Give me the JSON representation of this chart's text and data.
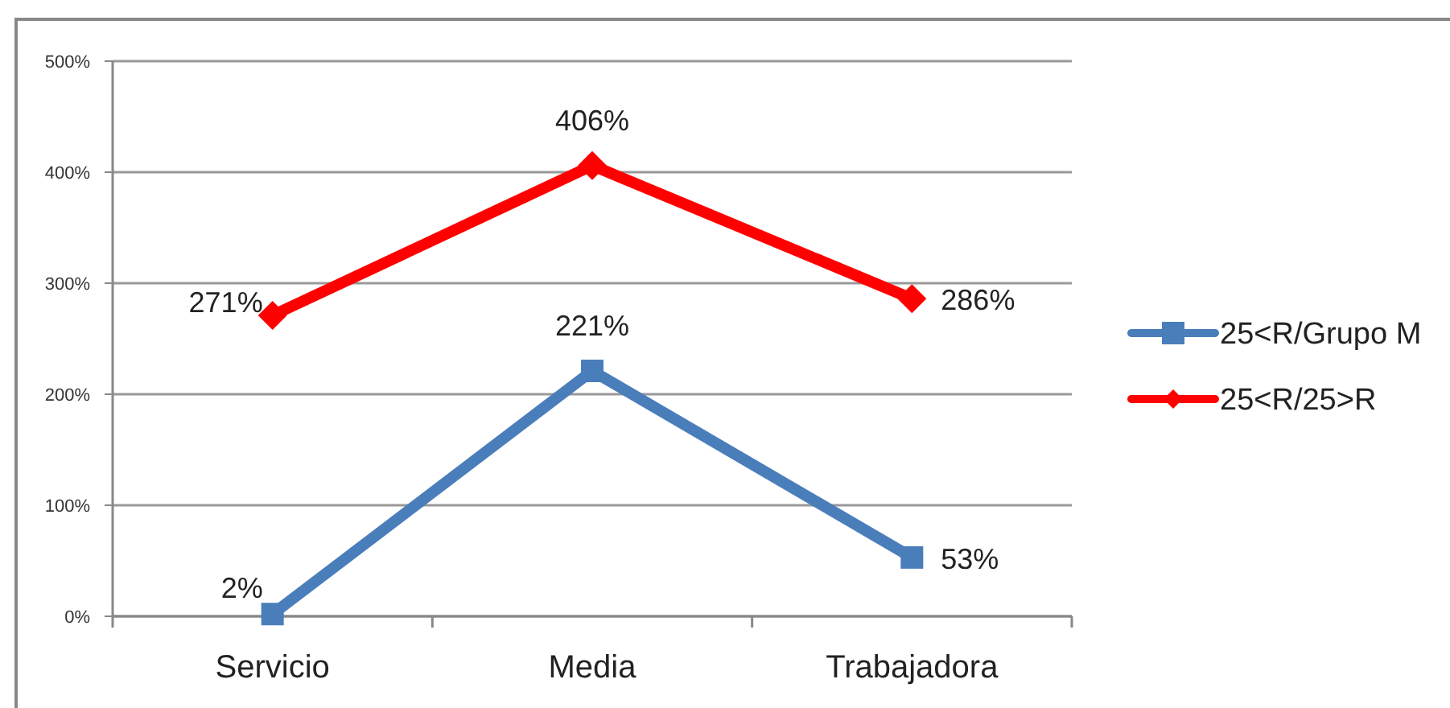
{
  "chart_data": {
    "type": "line",
    "categories": [
      "Servicio",
      "Media",
      "Trabajadora"
    ],
    "series": [
      {
        "name": "25<R/Grupo M",
        "color": "#4a7ebb",
        "marker": "square",
        "values": [
          2,
          221,
          53
        ],
        "value_labels": [
          "2%",
          "221%",
          "53%"
        ]
      },
      {
        "name": "25<R/25>R",
        "color": "#ff0000",
        "marker": "diamond",
        "values": [
          271,
          406,
          286
        ],
        "value_labels": [
          "271%",
          "406%",
          "286%"
        ]
      }
    ],
    "ylim": [
      0,
      500
    ],
    "yticks": [
      {
        "value": 0,
        "label": "0%"
      },
      {
        "value": 100,
        "label": "100%"
      },
      {
        "value": 200,
        "label": "200%"
      },
      {
        "value": 300,
        "label": "300%"
      },
      {
        "value": 400,
        "label": "400%"
      },
      {
        "value": 500,
        "label": "500%"
      }
    ],
    "grid": "y",
    "legend": "right"
  }
}
